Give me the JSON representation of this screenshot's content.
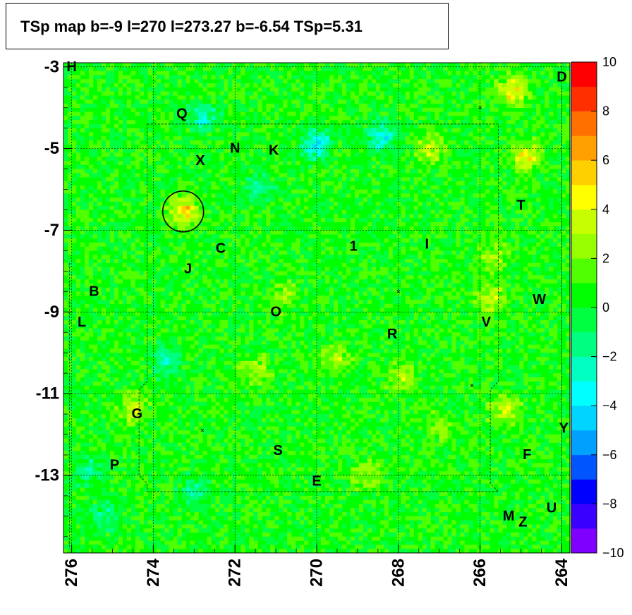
{
  "title": "TSp map b=-9 l=270 l=273.27 b=-6.54 TSp=5.31",
  "chart_data": {
    "type": "heatmap",
    "title": "TSp map b=-9 l=270 l=273.27 b=-6.54 TSp=5.31",
    "xlabel": "",
    "ylabel": "",
    "xlim": [
      276.2,
      263.8
    ],
    "ylim": [
      -14.9,
      -2.9
    ],
    "x_reversed": true,
    "x_ticks": [
      276,
      274,
      272,
      270,
      268,
      266,
      264
    ],
    "y_ticks": [
      -3,
      -5,
      -7,
      -9,
      -11,
      -13
    ],
    "zlim": [
      -10,
      10
    ],
    "z_ticks": [
      -10,
      -8,
      -6,
      -4,
      -2,
      0,
      2,
      4,
      6,
      8,
      10
    ],
    "colors": [
      "#7f00ff",
      "#3a00ff",
      "#0000ff",
      "#0055ff",
      "#00a0ff",
      "#00d4ff",
      "#00ffff",
      "#00ffc0",
      "#00ff80",
      "#00ff40",
      "#00ff00",
      "#50ff00",
      "#98ff00",
      "#c8ff00",
      "#ffff00",
      "#ffd000",
      "#ffa000",
      "#ff7000",
      "#ff3000",
      "#ff0000"
    ],
    "background_value": 0.5,
    "grid": true,
    "marker_circle": {
      "l": 273.27,
      "b": -6.54,
      "radius_deg": 0.5
    },
    "hotspots": [
      {
        "l": 273.27,
        "b": -6.54,
        "value": 5.3
      },
      {
        "l": 265.2,
        "b": -3.6,
        "value": 5.0
      },
      {
        "l": 264.9,
        "b": -5.2,
        "value": 4.5
      },
      {
        "l": 267.2,
        "b": -5.0,
        "value": 3.5
      },
      {
        "l": 265.7,
        "b": -8.7,
        "value": 3.5
      },
      {
        "l": 265.4,
        "b": -11.4,
        "value": 3.5
      },
      {
        "l": 271.5,
        "b": -10.4,
        "value": 3.2
      },
      {
        "l": 269.5,
        "b": -10.2,
        "value": 3.0
      },
      {
        "l": 267.9,
        "b": -10.6,
        "value": 3.2
      },
      {
        "l": 274.5,
        "b": -11.4,
        "value": 3.5
      },
      {
        "l": 268.8,
        "b": -13.0,
        "value": 3.0
      },
      {
        "l": 265.7,
        "b": -7.7,
        "value": 3.0
      },
      {
        "l": 270.8,
        "b": -8.6,
        "value": 2.5
      },
      {
        "l": 267.0,
        "b": -11.8,
        "value": 2.5
      }
    ],
    "coldspots": [
      {
        "l": 270.0,
        "b": -4.9,
        "value": -4.0
      },
      {
        "l": 268.4,
        "b": -4.7,
        "value": -3.5
      },
      {
        "l": 272.8,
        "b": -4.2,
        "value": -2.5
      },
      {
        "l": 271.4,
        "b": -6.0,
        "value": -2.0
      },
      {
        "l": 273.7,
        "b": -10.2,
        "value": -2.5
      },
      {
        "l": 273.0,
        "b": -13.4,
        "value": -2.0
      },
      {
        "l": 275.6,
        "b": -12.9,
        "value": -2.0
      },
      {
        "l": 275.2,
        "b": -14.0,
        "value": -1.5
      }
    ],
    "sources": [
      {
        "label": "H",
        "l": 276.0,
        "b": -3.0
      },
      {
        "label": "D",
        "l": 264.0,
        "b": -3.25
      },
      {
        "label": "Q",
        "l": 273.3,
        "b": -4.15
      },
      {
        "label": "N",
        "l": 272.0,
        "b": -5.0
      },
      {
        "label": "K",
        "l": 271.05,
        "b": -5.05
      },
      {
        "label": "X",
        "l": 272.85,
        "b": -5.3
      },
      {
        "label": "T",
        "l": 265.0,
        "b": -6.4
      },
      {
        "label": "C",
        "l": 272.35,
        "b": -7.45
      },
      {
        "label": "1",
        "l": 269.1,
        "b": -7.4
      },
      {
        "label": "I",
        "l": 267.3,
        "b": -7.35
      },
      {
        "label": "J",
        "l": 273.15,
        "b": -7.95
      },
      {
        "label": "B",
        "l": 275.45,
        "b": -8.5
      },
      {
        "label": "W",
        "l": 264.55,
        "b": -8.7
      },
      {
        "label": "O",
        "l": 271.0,
        "b": -9.0
      },
      {
        "label": "L",
        "l": 275.75,
        "b": -9.25
      },
      {
        "label": "V",
        "l": 265.85,
        "b": -9.25
      },
      {
        "label": "R",
        "l": 268.15,
        "b": -9.55
      },
      {
        "label": "G",
        "l": 274.4,
        "b": -11.5
      },
      {
        "label": "Y",
        "l": 263.95,
        "b": -11.85
      },
      {
        "label": "S",
        "l": 270.95,
        "b": -12.4
      },
      {
        "label": "F",
        "l": 264.85,
        "b": -12.5
      },
      {
        "label": "P",
        "l": 274.95,
        "b": -12.75
      },
      {
        "label": "E",
        "l": 270.0,
        "b": -13.15
      },
      {
        "label": "M",
        "l": 265.3,
        "b": -14.0
      },
      {
        "label": "Z",
        "l": 264.95,
        "b": -14.15
      },
      {
        "label": "U",
        "l": 264.25,
        "b": -13.8
      }
    ],
    "cross_markers": [
      {
        "l": 268.0,
        "b": -8.5
      },
      {
        "l": 266.2,
        "b": -10.8
      },
      {
        "l": 272.8,
        "b": -11.9
      },
      {
        "l": 266.0,
        "b": -4.0
      }
    ]
  }
}
